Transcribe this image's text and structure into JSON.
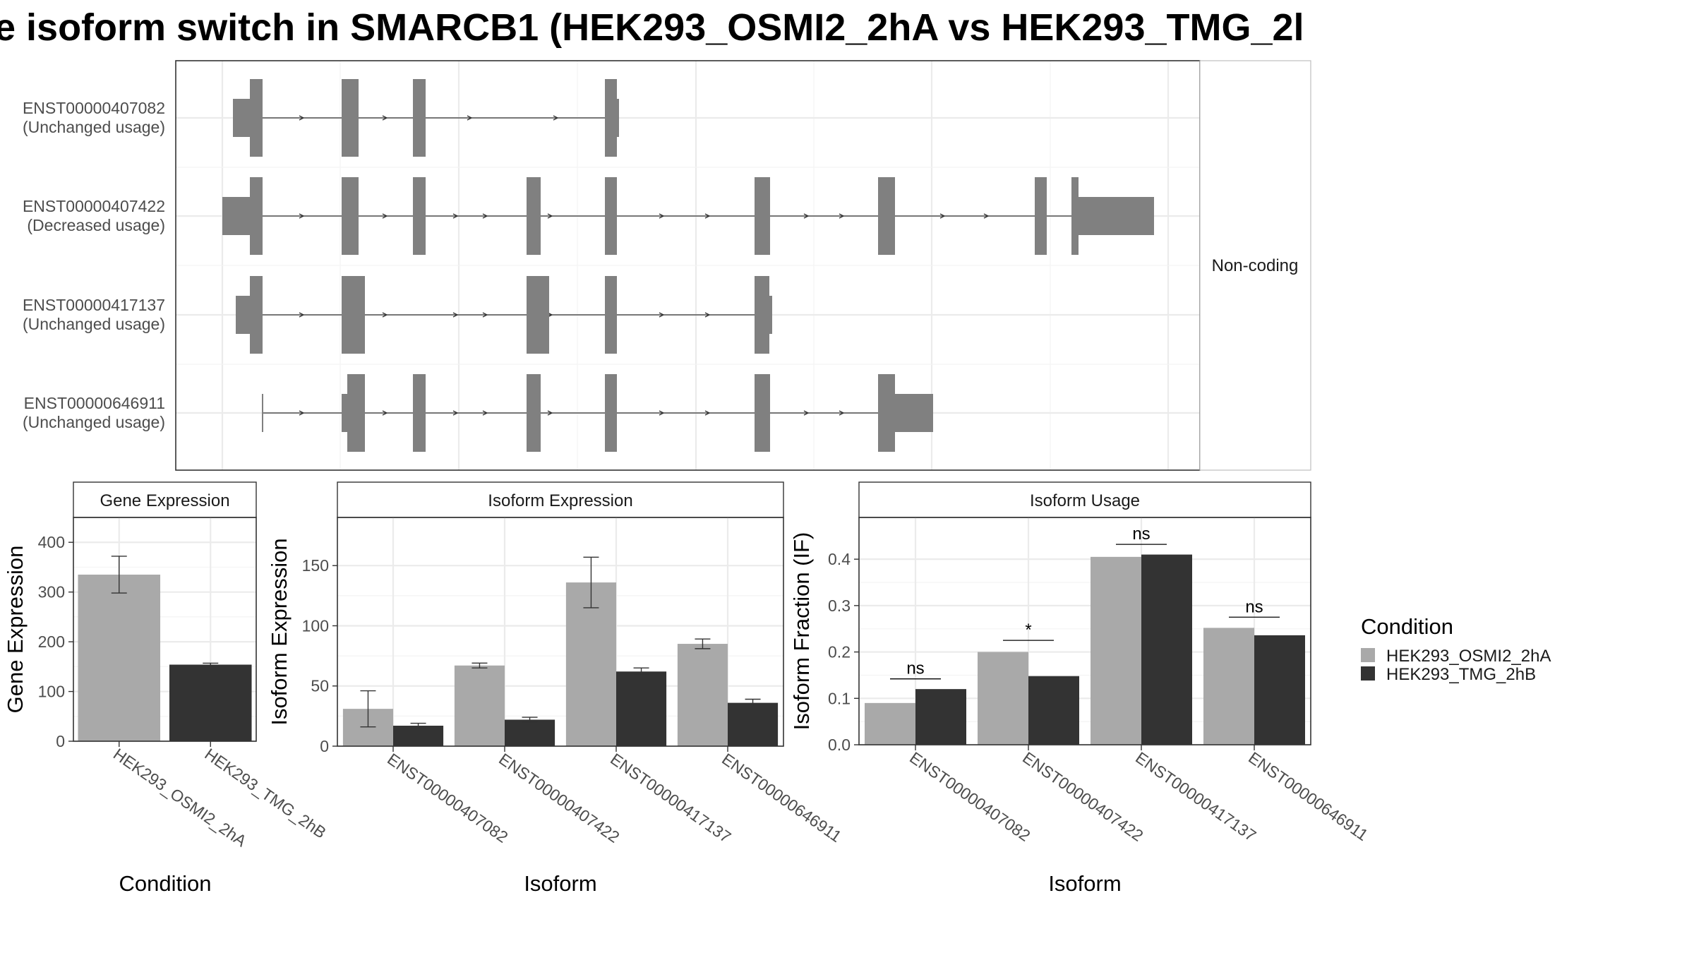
{
  "title": "e isoform switch in SMARCB1 (HEK293_OSMI2_2hA vs HEK293_TMG_2l",
  "colors": {
    "HEK293_OSMI2_2hA": "#a9a9a9",
    "HEK293_TMG_2hB": "#333333",
    "exon": "#808080"
  },
  "transcripts": {
    "strip_label": "Non-coding",
    "rows": [
      {
        "id": "ENST00000407082",
        "usage": "(Unchanged usage)"
      },
      {
        "id": "ENST00000407422",
        "usage": "(Decreased usage)"
      },
      {
        "id": "ENST00000417137",
        "usage": "(Unchanged usage)"
      },
      {
        "id": "ENST00000646911",
        "usage": "(Unchanged usage)"
      }
    ]
  },
  "chart_data": [
    {
      "type": "bar",
      "title": "Gene Expression",
      "xlabel": "Condition",
      "ylabel": "Gene Expression",
      "categories": [
        "HEK293_OSMI2_2hA",
        "HEK293_TMG_2hB"
      ],
      "values": [
        335,
        154
      ],
      "error": [
        [
          298,
          372
        ],
        [
          151,
          157
        ]
      ],
      "ylim": [
        0,
        450
      ],
      "yticks": [
        "0",
        "100",
        "200",
        "300",
        "400"
      ],
      "grid": true
    },
    {
      "type": "bar",
      "title": "Isoform Expression",
      "xlabel": "Isoform",
      "ylabel": "Isoform Expression",
      "categories": [
        "ENST00000407082",
        "ENST00000407422",
        "ENST00000417137",
        "ENST00000646911"
      ],
      "series": [
        {
          "name": "HEK293_OSMI2_2hA",
          "values": [
            31,
            67,
            136,
            85
          ],
          "error": [
            [
              16,
              46
            ],
            [
              65,
              69
            ],
            [
              115,
              157
            ],
            [
              81,
              89
            ]
          ]
        },
        {
          "name": "HEK293_TMG_2hB",
          "values": [
            17,
            22,
            62,
            36
          ],
          "error": [
            [
              15,
              19
            ],
            [
              20,
              24
            ],
            [
              59,
              65
            ],
            [
              33,
              39
            ]
          ]
        }
      ],
      "ylim": [
        0,
        190
      ],
      "yticks": [
        "0",
        "50",
        "100",
        "150"
      ],
      "grid": true
    },
    {
      "type": "bar",
      "title": "Isoform Usage",
      "xlabel": "Isoform",
      "ylabel": "Isoform Fraction (IF)",
      "categories": [
        "ENST00000407082",
        "ENST00000407422",
        "ENST00000417137",
        "ENST00000646911"
      ],
      "series": [
        {
          "name": "HEK293_OSMI2_2hA",
          "values": [
            0.09,
            0.2,
            0.405,
            0.252
          ]
        },
        {
          "name": "HEK293_TMG_2hB",
          "values": [
            0.12,
            0.148,
            0.41,
            0.236
          ]
        }
      ],
      "significance": [
        "ns",
        "*",
        "ns",
        "ns"
      ],
      "significance_y": [
        0.142,
        0.225,
        0.432,
        0.275
      ],
      "ylim": [
        0,
        0.49
      ],
      "yticks": [
        "0.0",
        "0.1",
        "0.2",
        "0.3",
        "0.4"
      ],
      "grid": true
    }
  ],
  "legend": {
    "title": "Condition",
    "items": [
      "HEK293_OSMI2_2hA",
      "HEK293_TMG_2hB"
    ]
  }
}
